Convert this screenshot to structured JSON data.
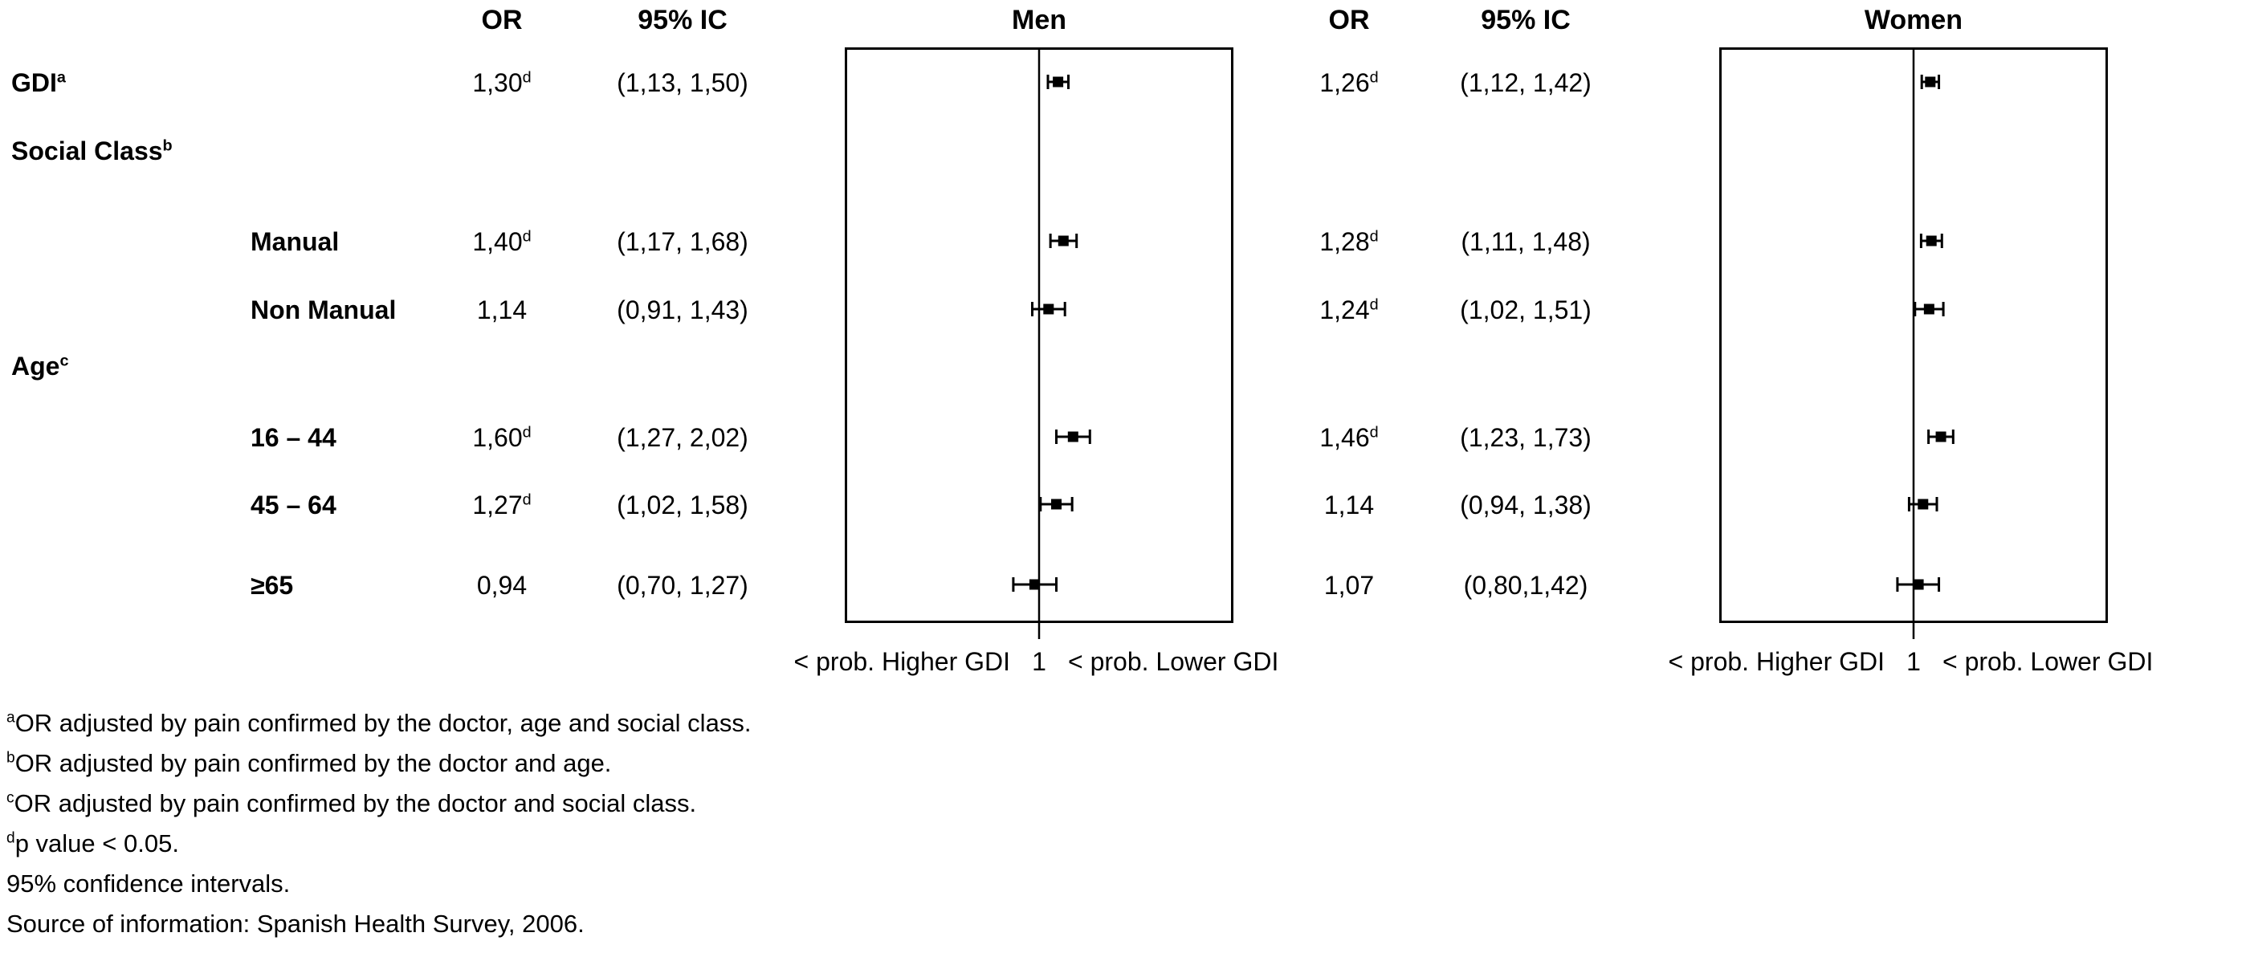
{
  "headers": {
    "or_men": "OR",
    "ci_men": "95% IC",
    "men": "Men",
    "or_women": "OR",
    "ci_women": "95% IC",
    "women": "Women"
  },
  "rows": [
    {
      "label": "GDI",
      "sup": "a",
      "men_or": "1,30",
      "men_sup": "d",
      "men_ci": "(1,13, 1,50)",
      "women_or": "1,26",
      "women_sup": "d",
      "women_ci": "(1,12, 1,42)"
    },
    {
      "label": "Social Class",
      "sup": "b"
    },
    {
      "label": "Manual",
      "sup": "",
      "men_or": "1,40",
      "men_sup": "d",
      "men_ci": "(1,17, 1,68)",
      "women_or": "1,28",
      "women_sup": "d",
      "women_ci": "(1,11, 1,48)"
    },
    {
      "label": "Non Manual",
      "sup": "",
      "men_or": "1,14",
      "men_sup": "",
      "men_ci": "(0,91, 1,43)",
      "women_or": "1,24",
      "women_sup": "d",
      "women_ci": "(1,02, 1,51)"
    },
    {
      "label": "Age",
      "sup": "c"
    },
    {
      "label": "16 – 44",
      "sup": "",
      "men_or": "1,60",
      "men_sup": "d",
      "men_ci": "(1,27, 2,02)",
      "women_or": "1,46",
      "women_sup": "d",
      "women_ci": "(1,23, 1,73)"
    },
    {
      "label": "45 – 64",
      "sup": "",
      "men_or": "1,27",
      "men_sup": "d",
      "men_ci": "(1,02, 1,58)",
      "women_or": "1,14",
      "women_sup": "",
      "women_ci": "(0,94, 1,38)"
    },
    {
      "label": "≥65",
      "sup": "",
      "men_or": "0,94",
      "men_sup": "",
      "men_ci": "(0,70, 1,27)",
      "women_or": "1,07",
      "women_sup": "",
      "women_ci": "(0,80,1,42)"
    }
  ],
  "axis": {
    "left": "< prob. Higher GDI",
    "center": "1",
    "right": "< prob. Lower GDI"
  },
  "footnotes": [
    {
      "sup": "a",
      "text": "OR adjusted by pain confirmed by the doctor, age and social class."
    },
    {
      "sup": "b",
      "text": "OR adjusted by pain confirmed by the doctor and age."
    },
    {
      "sup": "c",
      "text": "OR adjusted by pain confirmed by the doctor and social class."
    },
    {
      "sup": "d",
      "text": "p value < 0.05."
    },
    {
      "sup": "",
      "text": "95% confidence intervals."
    },
    {
      "sup": "",
      "text": "Source of information: Spanish Health Survey, 2006."
    }
  ],
  "chart_data": {
    "type": "scatter",
    "subtype": "forest-plot",
    "scale": "log",
    "ref_line": 1,
    "grid": false,
    "legend": "none",
    "categories": [
      "GDI",
      "Manual",
      "Non Manual",
      "16 – 44",
      "45 – 64",
      "≥65"
    ],
    "panels": [
      {
        "id": "men",
        "title": "Men",
        "or": [
          1.3,
          1.4,
          1.14,
          1.6,
          1.27,
          0.94
        ],
        "ci_low": [
          1.13,
          1.17,
          0.91,
          1.27,
          1.02,
          0.7
        ],
        "ci_high": [
          1.5,
          1.68,
          1.43,
          2.02,
          1.58,
          1.27
        ]
      },
      {
        "id": "women",
        "title": "Women",
        "or": [
          1.26,
          1.28,
          1.24,
          1.46,
          1.14,
          1.07
        ],
        "ci_low": [
          1.12,
          1.11,
          1.02,
          1.23,
          0.94,
          0.8
        ],
        "ci_high": [
          1.42,
          1.48,
          1.51,
          1.73,
          1.38,
          1.42
        ]
      }
    ],
    "xaxis_label_left": "< prob. Higher GDI",
    "xaxis_tick": "1",
    "xaxis_label_right": "< prob. Lower GDI",
    "colors": {
      "marker": "#000000",
      "line": "#000000",
      "border": "#000000"
    }
  }
}
